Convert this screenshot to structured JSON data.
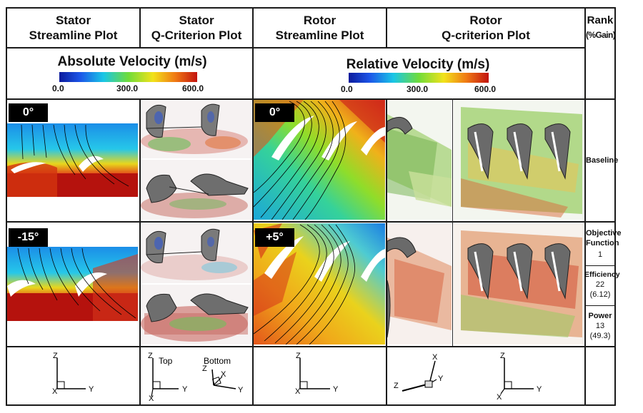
{
  "headers": {
    "stator_streamline": [
      "Stator",
      "Streamline Plot"
    ],
    "stator_q": [
      "Stator",
      "Q-Criterion Plot"
    ],
    "rotor_streamline": [
      "Rotor",
      "Streamline Plot"
    ],
    "rotor_q": [
      "Rotor",
      "Q-criterion Plot"
    ],
    "rank": [
      "Rank",
      "(%Gain)"
    ]
  },
  "legends": {
    "absolute": {
      "title": "Absolute Velocity (m/s)",
      "ticks": [
        "0.0",
        "300.0",
        "600.0"
      ]
    },
    "relative": {
      "title": "Relative Velocity (m/s)",
      "ticks": [
        "0.0",
        "300.0",
        "600.0"
      ]
    }
  },
  "rows": [
    {
      "stator_angle": "0°",
      "rotor_angle": "0°",
      "rank_label": "Baseline"
    },
    {
      "stator_angle": "-15°",
      "rotor_angle": "+5°"
    }
  ],
  "ranks": {
    "objective": {
      "label": [
        "Objective",
        "Function"
      ],
      "value": "1"
    },
    "efficiency": {
      "label": "Efficiency",
      "value": "22",
      "gain": "(6.12)"
    },
    "power": {
      "label": "Power",
      "value": "13",
      "gain": "(49.3)"
    }
  },
  "axes": {
    "stator_streamline": {
      "z": "Z",
      "x": "X",
      "y": "Y"
    },
    "stator_q_top": {
      "caption": "Top",
      "z": "Z",
      "x": "X",
      "y": "Y"
    },
    "stator_q_bottom": {
      "caption": "Bottom",
      "z": "Z",
      "x": "X",
      "y": "Y"
    },
    "rotor_streamline": {
      "z": "Z",
      "x": "X",
      "y": "Y"
    },
    "rotor_q_left": {
      "x": "X",
      "y": "Y",
      "z": "Z"
    },
    "rotor_q_right": {
      "z": "Z",
      "x": "X",
      "y": "Y"
    }
  }
}
